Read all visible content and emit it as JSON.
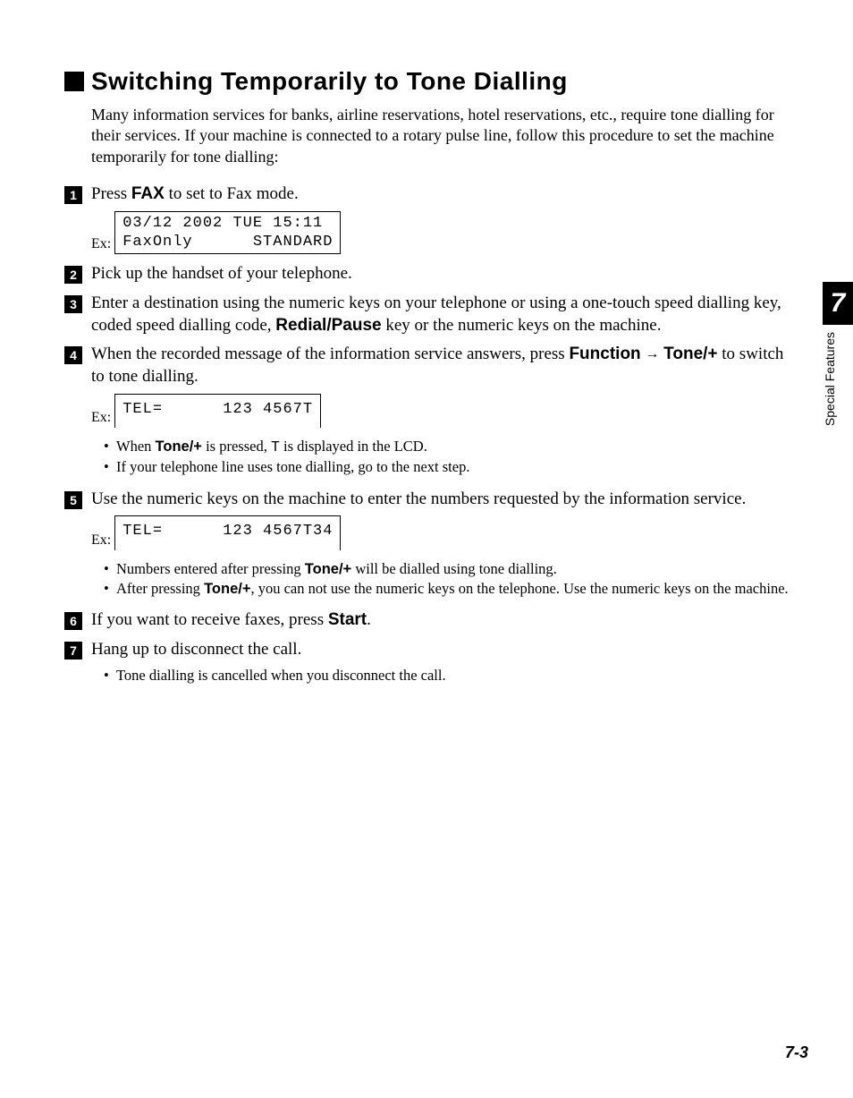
{
  "heading": "Switching Temporarily to Tone Dialling",
  "intro": "Many information services for banks, airline reservations, hotel reservations, etc., require tone dialling for their services. If your machine is connected to a rotary pulse line, follow this procedure to set the machine temporarily for tone dialling:",
  "step1_pre": "Press ",
  "step1_bold": "FAX",
  "step1_post": " to set to Fax mode.",
  "ex_label": "Ex:",
  "lcd1_l1": "03/12 2002 TUE 15:11",
  "lcd1_l2": "FaxOnly      STANDARD",
  "step2": "Pick up the handset of your telephone.",
  "step3_a": "Enter a destination using the numeric keys on your telephone or using a one-touch speed dialling key, coded speed dialling code, ",
  "step3_b": "Redial/Pause",
  "step3_c": " key or the numeric keys on the machine.",
  "step4_a": "When the recorded message of the information service answers, press ",
  "step4_b": "Function",
  "step4_c": "Tone/+",
  "step4_d": " to switch to tone dialling.",
  "lcd2": "TEL=      123 4567T",
  "b4_1a": "When ",
  "b4_1b": "Tone/+",
  "b4_1c": " is pressed, ",
  "b4_1d": "T",
  "b4_1e": " is displayed in the LCD.",
  "b4_2": "If your telephone line uses tone dialling, go to the next step.",
  "step5": "Use the numeric keys on the machine to enter the numbers requested by the information service.",
  "lcd3": "TEL=      123 4567T34",
  "b5_1a": "Numbers entered after pressing ",
  "b5_1b": "Tone/+",
  "b5_1c": " will be dialled using tone dialling.",
  "b5_2a": "After pressing ",
  "b5_2b": "Tone/+",
  "b5_2c": ", you can not use the numeric keys on the telephone. Use the numeric keys on the machine.",
  "step6_a": "If you want to receive faxes, press ",
  "step6_b": "Start",
  "step6_c": ".",
  "step7": "Hang up to disconnect the call.",
  "b7_1": "Tone dialling is cancelled when you disconnect the call.",
  "tab_num": "7",
  "tab_label": "Special Features",
  "page_num": "7-3",
  "n1": "1",
  "n2": "2",
  "n3": "3",
  "n4": "4",
  "n5": "5",
  "n6": "6",
  "n7": "7",
  "dot": "•",
  "arrow": "→"
}
